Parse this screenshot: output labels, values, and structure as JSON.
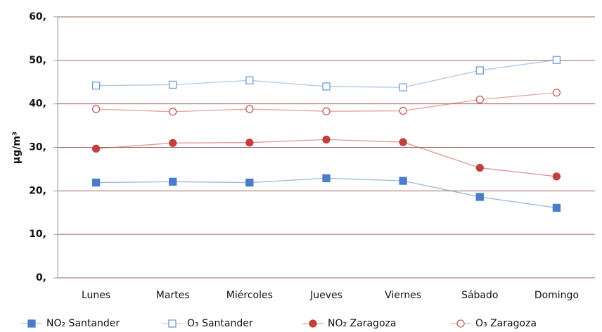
{
  "chart_data": {
    "type": "line",
    "y_label": "µg/m³",
    "categories": [
      "Lunes",
      "Martes",
      "Miércoles",
      "Jueves",
      "Viernes",
      "Sábado",
      "Domingo"
    ],
    "series": [
      {
        "name": "NO₂ Santander",
        "color": "#4a7cc7",
        "marker": "square",
        "filled": true,
        "values": [
          21.9,
          22.1,
          21.9,
          22.9,
          22.3,
          18.6,
          16.1
        ]
      },
      {
        "name": "O₃ Santander",
        "color": "#6f9bd6",
        "marker": "square",
        "filled": false,
        "values": [
          44.2,
          44.4,
          45.4,
          44.0,
          43.8,
          47.7,
          50.1
        ]
      },
      {
        "name": "NO₂ Zaragoza",
        "color": "#c0403d",
        "marker": "circle",
        "filled": true,
        "values": [
          29.7,
          31.0,
          31.1,
          31.8,
          31.2,
          25.3,
          23.3
        ]
      },
      {
        "name": "O₃ Zaragoza",
        "color": "#c85a57",
        "marker": "circle",
        "filled": false,
        "values": [
          38.8,
          38.2,
          38.8,
          38.3,
          38.4,
          41.0,
          42.6
        ]
      }
    ],
    "ylim": [
      0,
      60
    ],
    "yticks": [
      {
        "value": 0,
        "label": "0,"
      },
      {
        "value": 10,
        "label": "10,"
      },
      {
        "value": 20,
        "label": "20,"
      },
      {
        "value": 30,
        "label": "30,"
      },
      {
        "value": 40,
        "label": "40,"
      },
      {
        "value": 50,
        "label": "50,"
      },
      {
        "value": 60,
        "label": "60,"
      }
    ],
    "grid": true,
    "legend": "bottom"
  }
}
